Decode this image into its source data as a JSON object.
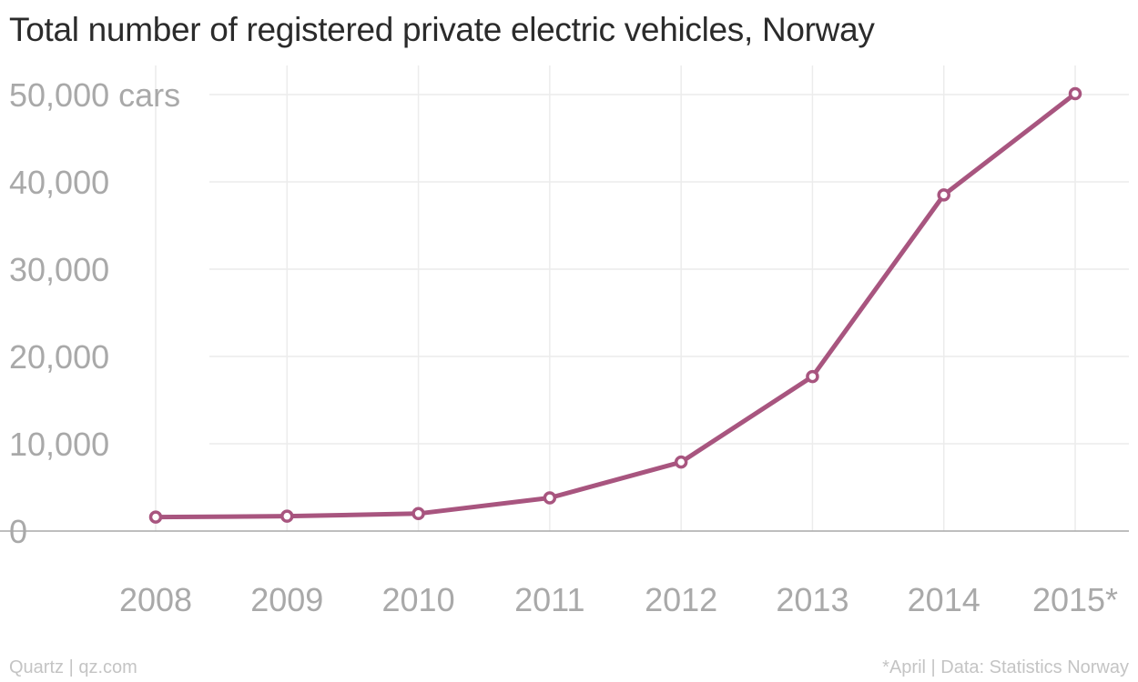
{
  "chart_data": {
    "type": "line",
    "title": "Total number of registered private electric vehicles, Norway",
    "xlabel": "",
    "ylabel": "",
    "categories": [
      "2008",
      "2009",
      "2010",
      "2011",
      "2012",
      "2013",
      "2014",
      "2015*"
    ],
    "values": [
      1600,
      1700,
      2000,
      3800,
      7900,
      17700,
      38500,
      50100
    ],
    "ylim": [
      0,
      50000
    ],
    "y_ticks": [
      {
        "value": 0,
        "label": "0"
      },
      {
        "value": 10000,
        "label": "10,000"
      },
      {
        "value": 20000,
        "label": "20,000"
      },
      {
        "value": 30000,
        "label": "30,000"
      },
      {
        "value": 40000,
        "label": "40,000"
      },
      {
        "value": 50000,
        "label": "50,000 cars"
      }
    ],
    "grid": true,
    "line_color": "#a8557f"
  },
  "footer": {
    "source": "Quartz | qz.com",
    "note": "*April | Data: Statistics Norway"
  }
}
